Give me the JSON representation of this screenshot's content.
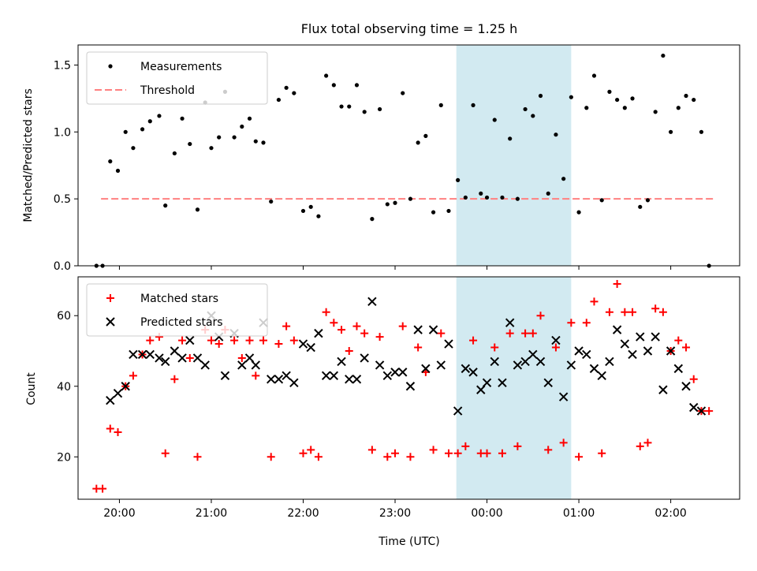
{
  "chart_data": [
    {
      "type": "scatter",
      "title": "Flux total observing time = 1.25 h",
      "xlabel": "",
      "ylabel": "Matched/Predicted stars",
      "x_is_time": true,
      "xlim": [
        "19:33",
        "02:45"
      ],
      "ylim": [
        0,
        1.65
      ],
      "yticks": [
        0.0,
        0.5,
        1.0,
        1.5
      ],
      "ytick_labels": [
        "0.0",
        "0.5",
        "1.0",
        "1.5"
      ],
      "shaded_interval": [
        "23:40",
        "00:55"
      ],
      "shade_color": "#add8e6",
      "legend_position": "upper-left",
      "threshold": {
        "name": "Threshold",
        "value": 0.5,
        "x": [
          "19:48",
          "02:28"
        ],
        "color": "#ff8080",
        "style": "dashed"
      },
      "series": [
        {
          "name": "Measurements",
          "marker": "dot",
          "color": "#000000",
          "points": [
            [
              "19:45",
              0.0
            ],
            [
              "19:49",
              0.0
            ],
            [
              "19:54",
              0.78
            ],
            [
              "19:59",
              0.71
            ],
            [
              "20:04",
              1.0
            ],
            [
              "20:09",
              0.88
            ],
            [
              "20:15",
              1.02
            ],
            [
              "20:20",
              1.08
            ],
            [
              "20:26",
              1.12
            ],
            [
              "20:30",
              0.45
            ],
            [
              "20:36",
              0.84
            ],
            [
              "20:41",
              1.1
            ],
            [
              "20:46",
              0.91
            ],
            [
              "20:51",
              0.42
            ],
            [
              "20:56",
              1.22
            ],
            [
              "21:00",
              0.88
            ],
            [
              "21:05",
              0.96
            ],
            [
              "21:09",
              1.3
            ],
            [
              "21:15",
              0.96
            ],
            [
              "21:20",
              1.04
            ],
            [
              "21:25",
              1.1
            ],
            [
              "21:29",
              0.93
            ],
            [
              "21:34",
              0.92
            ],
            [
              "21:39",
              0.48
            ],
            [
              "21:44",
              1.24
            ],
            [
              "21:49",
              1.33
            ],
            [
              "21:54",
              1.29
            ],
            [
              "22:00",
              0.41
            ],
            [
              "22:05",
              0.44
            ],
            [
              "22:10",
              0.37
            ],
            [
              "22:15",
              1.42
            ],
            [
              "22:20",
              1.35
            ],
            [
              "22:25",
              1.19
            ],
            [
              "22:30",
              1.19
            ],
            [
              "22:35",
              1.35
            ],
            [
              "22:40",
              1.15
            ],
            [
              "22:45",
              0.35
            ],
            [
              "22:50",
              1.17
            ],
            [
              "22:55",
              0.46
            ],
            [
              "23:00",
              0.47
            ],
            [
              "23:05",
              1.29
            ],
            [
              "23:10",
              0.5
            ],
            [
              "23:15",
              0.92
            ],
            [
              "23:20",
              0.97
            ],
            [
              "23:25",
              0.4
            ],
            [
              "23:30",
              1.2
            ],
            [
              "23:35",
              0.41
            ],
            [
              "23:41",
              0.64
            ],
            [
              "23:46",
              0.51
            ],
            [
              "23:51",
              1.2
            ],
            [
              "23:56",
              0.54
            ],
            [
              "00:00",
              0.51
            ],
            [
              "00:05",
              1.09
            ],
            [
              "00:10",
              0.51
            ],
            [
              "00:15",
              0.95
            ],
            [
              "00:20",
              0.5
            ],
            [
              "00:25",
              1.17
            ],
            [
              "00:30",
              1.12
            ],
            [
              "00:35",
              1.27
            ],
            [
              "00:40",
              0.54
            ],
            [
              "00:45",
              0.98
            ],
            [
              "00:50",
              0.65
            ],
            [
              "00:55",
              1.26
            ],
            [
              "01:00",
              0.4
            ],
            [
              "01:05",
              1.18
            ],
            [
              "01:10",
              1.42
            ],
            [
              "01:15",
              0.49
            ],
            [
              "01:20",
              1.3
            ],
            [
              "01:25",
              1.24
            ],
            [
              "01:30",
              1.18
            ],
            [
              "01:35",
              1.25
            ],
            [
              "01:40",
              0.44
            ],
            [
              "01:45",
              0.49
            ],
            [
              "01:50",
              1.15
            ],
            [
              "01:55",
              1.57
            ],
            [
              "02:00",
              1.0
            ],
            [
              "02:05",
              1.18
            ],
            [
              "02:10",
              1.27
            ],
            [
              "02:15",
              1.24
            ],
            [
              "02:20",
              1.0
            ],
            [
              "02:25",
              0.0
            ]
          ]
        }
      ]
    },
    {
      "type": "scatter",
      "title": "",
      "xlabel": "Time (UTC)",
      "ylabel": "Count",
      "x_is_time": true,
      "xlim": [
        "19:33",
        "02:45"
      ],
      "ylim": [
        8,
        71
      ],
      "yticks": [
        20,
        40,
        60
      ],
      "ytick_labels": [
        "20",
        "40",
        "60"
      ],
      "xticks": [
        "20:00",
        "21:00",
        "22:00",
        "23:00",
        "00:00",
        "01:00",
        "02:00"
      ],
      "shaded_interval": [
        "23:40",
        "00:55"
      ],
      "shade_color": "#add8e6",
      "legend_position": "upper-left",
      "series": [
        {
          "name": "Matched stars",
          "marker": "plus",
          "color": "#ff0000",
          "points": [
            [
              "19:45",
              11
            ],
            [
              "19:49",
              11
            ],
            [
              "19:54",
              28
            ],
            [
              "19:59",
              27
            ],
            [
              "20:04",
              40
            ],
            [
              "20:09",
              43
            ],
            [
              "20:15",
              49
            ],
            [
              "20:20",
              53
            ],
            [
              "20:26",
              54
            ],
            [
              "20:30",
              21
            ],
            [
              "20:36",
              42
            ],
            [
              "20:41",
              53
            ],
            [
              "20:46",
              48
            ],
            [
              "20:51",
              20
            ],
            [
              "20:56",
              56
            ],
            [
              "21:00",
              53
            ],
            [
              "21:05",
              52
            ],
            [
              "21:09",
              56
            ],
            [
              "21:15",
              53
            ],
            [
              "21:20",
              48
            ],
            [
              "21:25",
              53
            ],
            [
              "21:29",
              43
            ],
            [
              "21:34",
              53
            ],
            [
              "21:39",
              20
            ],
            [
              "21:44",
              52
            ],
            [
              "21:49",
              57
            ],
            [
              "21:54",
              53
            ],
            [
              "22:00",
              21
            ],
            [
              "22:05",
              22
            ],
            [
              "22:10",
              20
            ],
            [
              "22:15",
              61
            ],
            [
              "22:20",
              58
            ],
            [
              "22:25",
              56
            ],
            [
              "22:30",
              50
            ],
            [
              "22:35",
              57
            ],
            [
              "22:40",
              55
            ],
            [
              "22:45",
              22
            ],
            [
              "22:50",
              54
            ],
            [
              "22:55",
              20
            ],
            [
              "23:00",
              21
            ],
            [
              "23:05",
              57
            ],
            [
              "23:10",
              20
            ],
            [
              "23:15",
              51
            ],
            [
              "23:20",
              44
            ],
            [
              "23:25",
              22
            ],
            [
              "23:30",
              55
            ],
            [
              "23:35",
              21
            ],
            [
              "23:41",
              21
            ],
            [
              "23:46",
              23
            ],
            [
              "23:51",
              53
            ],
            [
              "23:56",
              21
            ],
            [
              "00:00",
              21
            ],
            [
              "00:05",
              51
            ],
            [
              "00:10",
              21
            ],
            [
              "00:15",
              55
            ],
            [
              "00:20",
              23
            ],
            [
              "00:25",
              55
            ],
            [
              "00:30",
              55
            ],
            [
              "00:35",
              60
            ],
            [
              "00:40",
              22
            ],
            [
              "00:45",
              51
            ],
            [
              "00:50",
              24
            ],
            [
              "00:55",
              58
            ],
            [
              "01:00",
              20
            ],
            [
              "01:05",
              58
            ],
            [
              "01:10",
              64
            ],
            [
              "01:15",
              21
            ],
            [
              "01:20",
              61
            ],
            [
              "01:25",
              69
            ],
            [
              "01:30",
              61
            ],
            [
              "01:35",
              61
            ],
            [
              "01:40",
              23
            ],
            [
              "01:45",
              24
            ],
            [
              "01:50",
              62
            ],
            [
              "01:55",
              61
            ],
            [
              "02:00",
              50
            ],
            [
              "02:05",
              53
            ],
            [
              "02:10",
              51
            ],
            [
              "02:15",
              42
            ],
            [
              "02:20",
              33
            ],
            [
              "02:25",
              33
            ]
          ]
        },
        {
          "name": "Predicted stars",
          "marker": "x",
          "color": "#000000",
          "points": [
            [
              "19:54",
              36
            ],
            [
              "19:59",
              38
            ],
            [
              "20:04",
              40
            ],
            [
              "20:09",
              49
            ],
            [
              "20:15",
              49
            ],
            [
              "20:20",
              49
            ],
            [
              "20:26",
              48
            ],
            [
              "20:30",
              47
            ],
            [
              "20:36",
              50
            ],
            [
              "20:41",
              48
            ],
            [
              "20:46",
              53
            ],
            [
              "20:51",
              48
            ],
            [
              "20:56",
              46
            ],
            [
              "21:00",
              60
            ],
            [
              "21:05",
              54
            ],
            [
              "21:09",
              43
            ],
            [
              "21:15",
              55
            ],
            [
              "21:20",
              46
            ],
            [
              "21:25",
              48
            ],
            [
              "21:29",
              46
            ],
            [
              "21:34",
              58
            ],
            [
              "21:39",
              42
            ],
            [
              "21:44",
              42
            ],
            [
              "21:49",
              43
            ],
            [
              "21:54",
              41
            ],
            [
              "22:00",
              52
            ],
            [
              "22:05",
              51
            ],
            [
              "22:10",
              55
            ],
            [
              "22:15",
              43
            ],
            [
              "22:20",
              43
            ],
            [
              "22:25",
              47
            ],
            [
              "22:30",
              42
            ],
            [
              "22:35",
              42
            ],
            [
              "22:40",
              48
            ],
            [
              "22:45",
              64
            ],
            [
              "22:50",
              46
            ],
            [
              "22:55",
              43
            ],
            [
              "23:00",
              44
            ],
            [
              "23:05",
              44
            ],
            [
              "23:10",
              40
            ],
            [
              "23:15",
              56
            ],
            [
              "23:20",
              45
            ],
            [
              "23:25",
              56
            ],
            [
              "23:30",
              46
            ],
            [
              "23:35",
              52
            ],
            [
              "23:41",
              33
            ],
            [
              "23:46",
              45
            ],
            [
              "23:51",
              44
            ],
            [
              "23:56",
              39
            ],
            [
              "00:00",
              41
            ],
            [
              "00:05",
              47
            ],
            [
              "00:10",
              41
            ],
            [
              "00:15",
              58
            ],
            [
              "00:20",
              46
            ],
            [
              "00:25",
              47
            ],
            [
              "00:30",
              49
            ],
            [
              "00:35",
              47
            ],
            [
              "00:40",
              41
            ],
            [
              "00:45",
              53
            ],
            [
              "00:50",
              37
            ],
            [
              "00:55",
              46
            ],
            [
              "01:00",
              50
            ],
            [
              "01:05",
              49
            ],
            [
              "01:10",
              45
            ],
            [
              "01:15",
              43
            ],
            [
              "01:20",
              47
            ],
            [
              "01:25",
              56
            ],
            [
              "01:30",
              52
            ],
            [
              "01:35",
              49
            ],
            [
              "01:40",
              54
            ],
            [
              "01:45",
              50
            ],
            [
              "01:50",
              54
            ],
            [
              "01:55",
              39
            ],
            [
              "02:00",
              50
            ],
            [
              "02:05",
              45
            ],
            [
              "02:10",
              40
            ],
            [
              "02:15",
              34
            ],
            [
              "02:20",
              33
            ]
          ]
        }
      ]
    }
  ]
}
